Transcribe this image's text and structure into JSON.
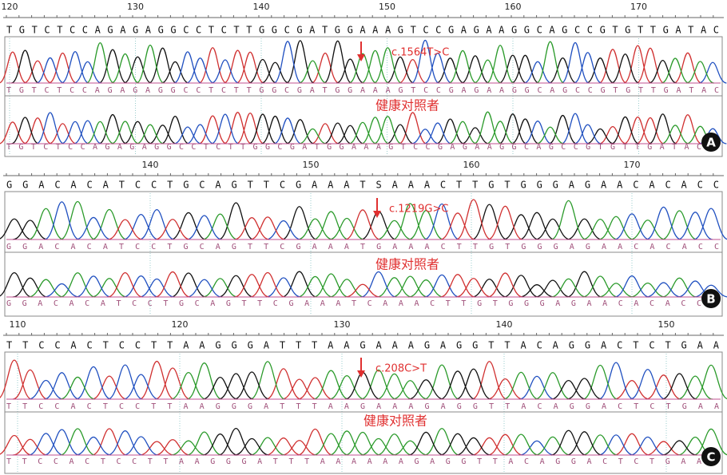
{
  "panels": [
    {
      "ruler": [
        "120",
        "130",
        "140",
        "150",
        "160",
        "170"
      ],
      "sequence": "TGTCTCCAGAGAGGCCTCTTGGCGATGGAAAGTCCGAGAAGGCAGCCGTGTTGATAC",
      "mutant_bases": "TGTCTCCAGAGAGGCCTCTTGGCGATGGAAAGTCCGAGAAGGCAGCCGTGTTGATAC",
      "mutation": "c.1564T>C",
      "control_label": "健康对照者",
      "control_bases": "TGTCTCCAGAGAGGCCTCTTGGCGATGGAAAGTCCGAGAAGGCAGCCGTGTTGATAC",
      "letter": "A"
    },
    {
      "ruler": [
        "140",
        "150",
        "160",
        "170"
      ],
      "sequence": "GGACACATCCTGCAGTTCGAAATSAAACTTGTGGGAGAACACACC",
      "mutant_bases": "GGACACATCCTGCAGTTCGAAATGAAACTTGTGGGAGAACACACC",
      "mutation": "c.1219G>C",
      "control_label": "健康对照者",
      "control_bases": "GGACACATCCTGCAGTTCGAAATCAAACTTGTGGGAGAACACACC",
      "letter": "B"
    },
    {
      "ruler": [
        "110",
        "120",
        "130",
        "140",
        "150"
      ],
      "sequence": "TTCCACTCCTTAAGGGATTTAAGAAAGAGGTTACAGGACTCTGAA",
      "mutant_bases": "TTCCACTCCTTAAGGGATTTAAGAAAGAGGTTACAGGACTCTGAA",
      "mutation": "c.208C>T",
      "control_label": "健康对照者",
      "control_bases": "TTCCACTCCTTAAGGGATTTAAAAAAGAGGTTACAGGACTCTGAA",
      "letter": "C"
    }
  ]
}
